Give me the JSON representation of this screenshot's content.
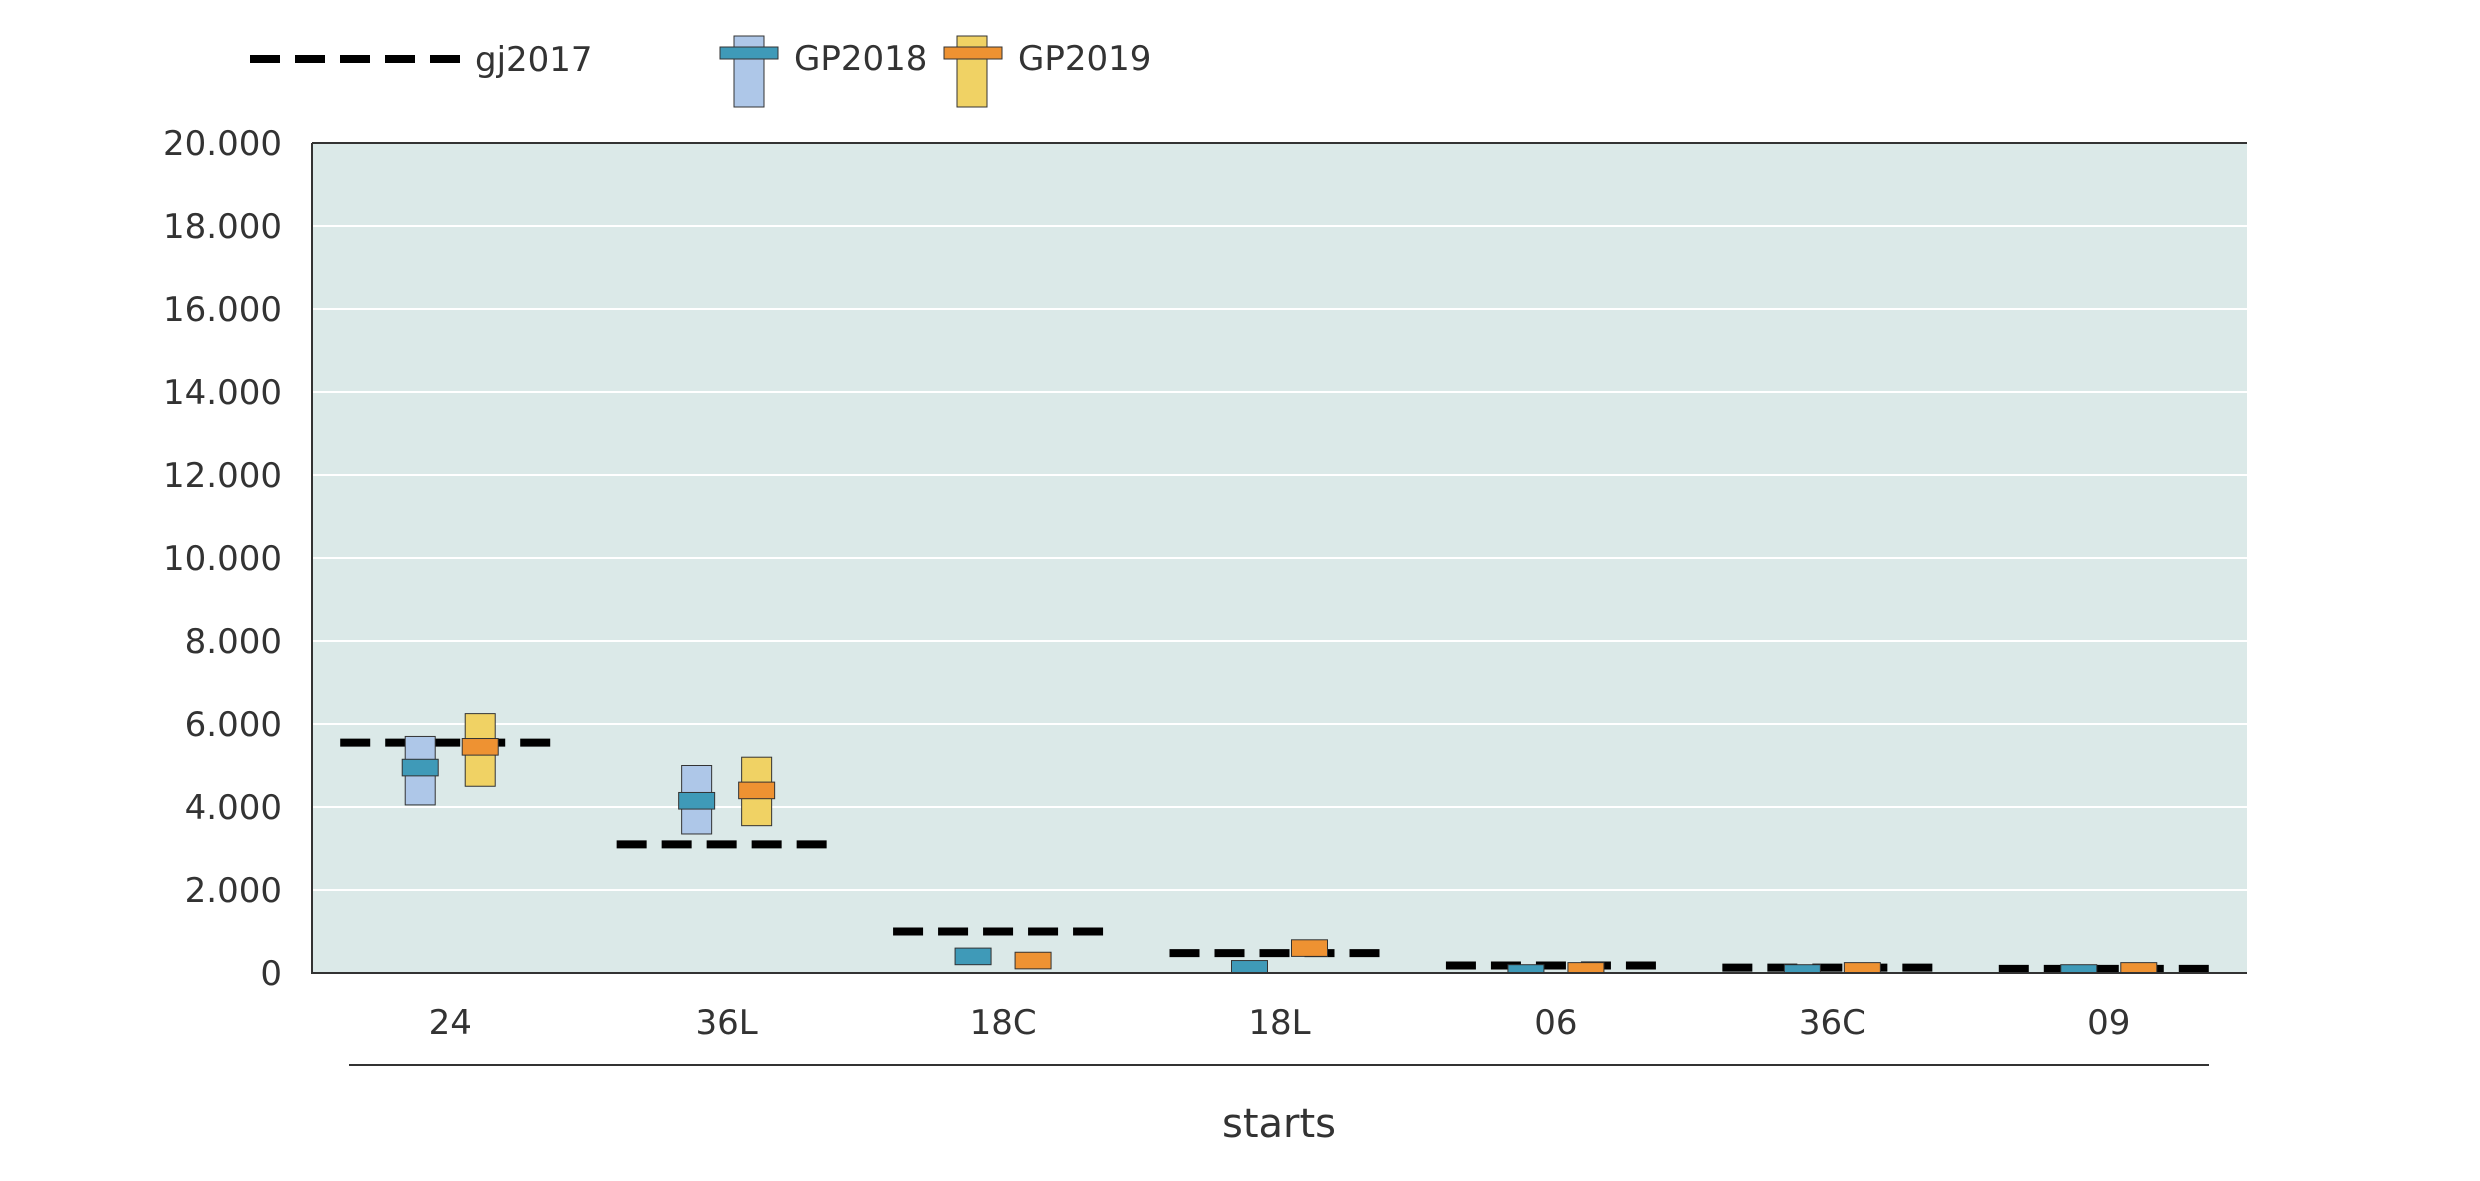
{
  "chart_data": {
    "type": "bar",
    "xlabel": "starts",
    "ylabel": "",
    "ylim": [
      0,
      20000
    ],
    "yticks": [
      0,
      2000,
      4000,
      6000,
      8000,
      10000,
      12000,
      14000,
      16000,
      18000,
      20000
    ],
    "ytick_labels": [
      "0",
      "2.000",
      "4.000",
      "6.000",
      "8.000",
      "10.000",
      "12.000",
      "14.000",
      "16.000",
      "18.000",
      "20.000"
    ],
    "categories": [
      "24",
      "36L",
      "18C",
      "18L",
      "06",
      "36C",
      "09"
    ],
    "grid": "horizontal",
    "legend_position": "top-left",
    "colors": {
      "plot_background": "#dbe9e8",
      "gj2017_line": "#000000",
      "GP2018_outer": "#aec7e8",
      "GP2018_inner": "#3f9ab8",
      "GP2019_outer": "#f0d264",
      "GP2019_inner": "#ee9232"
    },
    "series": [
      {
        "name": "gj2017",
        "style": "dashed-line",
        "values": [
          5550,
          3100,
          1000,
          480,
          180,
          130,
          100
        ]
      },
      {
        "name": "GP2018",
        "style": "range-box",
        "low": [
          4050,
          3350,
          0,
          0,
          0,
          0,
          0
        ],
        "high": [
          5700,
          5000,
          0,
          0,
          0,
          0,
          0
        ],
        "inner_low": [
          4750,
          3950,
          200,
          0,
          0,
          0,
          0
        ],
        "inner_high": [
          5150,
          4350,
          600,
          300,
          200,
          200,
          200
        ]
      },
      {
        "name": "GP2019",
        "style": "range-box",
        "low": [
          4500,
          3550,
          0,
          0,
          0,
          0,
          0
        ],
        "high": [
          6250,
          5200,
          0,
          0,
          0,
          0,
          0
        ],
        "inner_low": [
          5250,
          4200,
          100,
          400,
          0,
          0,
          0
        ],
        "inner_high": [
          5650,
          4600,
          500,
          800,
          250,
          250,
          250
        ]
      }
    ]
  }
}
